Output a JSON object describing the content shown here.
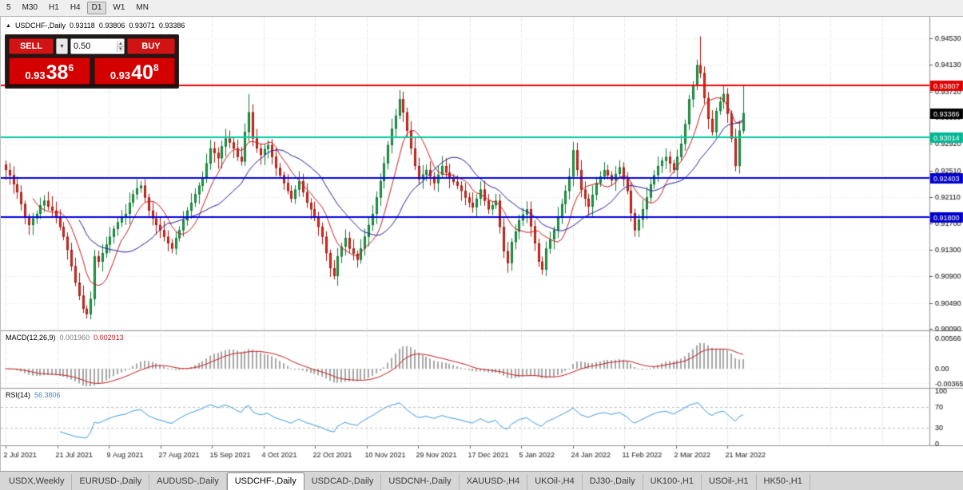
{
  "toolbar": {
    "periods": [
      {
        "label": "5",
        "active": false
      },
      {
        "label": "M30",
        "active": false
      },
      {
        "label": "H1",
        "active": false
      },
      {
        "label": "H4",
        "active": false
      },
      {
        "label": "D1",
        "active": true
      },
      {
        "label": "W1",
        "active": false
      },
      {
        "label": "MN",
        "active": false
      }
    ]
  },
  "icons": {
    "collapse": "▲",
    "dropdown": "▼",
    "spin_up": "▲",
    "spin_down": "▼"
  },
  "symbol_header": {
    "symbol": "USDCHF-,Daily",
    "open": "0.93118",
    "high": "0.93806",
    "low": "0.93071",
    "close": "0.93386"
  },
  "trade_panel": {
    "sell_label": "SELL",
    "buy_label": "BUY",
    "volume": "0.50",
    "sell_price": {
      "base": "0.93",
      "big": "38",
      "sup": "6"
    },
    "buy_price": {
      "base": "0.93",
      "big": "40",
      "sup": "8"
    }
  },
  "chart_data": [
    {
      "type": "candlestick",
      "title": "USDCHF-,Daily",
      "ohlc_display": {
        "open": "0.93118",
        "high": "0.93806",
        "low": "0.93071",
        "close": "0.93386"
      },
      "x_tick_labels": [
        "2 Jul 2021",
        "21 Jul 2021",
        "9 Aug 2021",
        "27 Aug 2021",
        "15 Sep 2021",
        "4 Oct 2021",
        "22 Oct 2021",
        "10 Nov 2021",
        "29 Nov 2021",
        "17 Dec 2021",
        "5 Jan 2022",
        "24 Jan 2022",
        "11 Feb 2022",
        "2 Mar 2022",
        "21 Mar 2022"
      ],
      "y_axis": {
        "min": 0.9007,
        "max": 0.9486,
        "tick_labels": [
          "0.94530",
          "0.94130",
          "0.93720",
          "0.93330",
          "0.92920",
          "0.92510",
          "0.92110",
          "0.91700",
          "0.91300",
          "0.90900",
          "0.90490",
          "0.90090"
        ]
      },
      "first_open": 0.926,
      "closes": [
        0.9252,
        0.9244,
        0.923,
        0.9218,
        0.92,
        0.918,
        0.9168,
        0.9178,
        0.9185,
        0.9198,
        0.9205,
        0.9196,
        0.919,
        0.918,
        0.9165,
        0.915,
        0.913,
        0.9105,
        0.908,
        0.906,
        0.904,
        0.9032,
        0.9055,
        0.912,
        0.9112,
        0.9125,
        0.9138,
        0.915,
        0.9162,
        0.9172,
        0.918,
        0.9185,
        0.9202,
        0.9215,
        0.9224,
        0.9228,
        0.921,
        0.919,
        0.9178,
        0.9168,
        0.916,
        0.915,
        0.914,
        0.9132,
        0.9148,
        0.916,
        0.9175,
        0.919,
        0.9202,
        0.9215,
        0.9228,
        0.924,
        0.9262,
        0.9285,
        0.9278,
        0.927,
        0.9288,
        0.93,
        0.9294,
        0.9285,
        0.9272,
        0.9265,
        0.931,
        0.934,
        0.93,
        0.9285,
        0.9275,
        0.9284,
        0.929,
        0.9272,
        0.9255,
        0.9244,
        0.9232,
        0.922,
        0.9208,
        0.9222,
        0.9235,
        0.9218,
        0.9202,
        0.9192,
        0.918,
        0.9165,
        0.915,
        0.9125,
        0.9102,
        0.909,
        0.912,
        0.9135,
        0.9148,
        0.9132,
        0.9124,
        0.9115,
        0.9132,
        0.915,
        0.9168,
        0.9185,
        0.921,
        0.9235,
        0.9262,
        0.929,
        0.9315,
        0.9335,
        0.936,
        0.934,
        0.9312,
        0.9285,
        0.9258,
        0.9238,
        0.9245,
        0.9252,
        0.9242,
        0.9232,
        0.9245,
        0.9258,
        0.9248,
        0.924,
        0.9234,
        0.9228,
        0.922,
        0.921,
        0.9202,
        0.9195,
        0.9208,
        0.9222,
        0.9205,
        0.9192,
        0.9198,
        0.9205,
        0.9165,
        0.9128,
        0.911,
        0.9142,
        0.9158,
        0.9175,
        0.9184,
        0.9192,
        0.9166,
        0.914,
        0.9112,
        0.91,
        0.9132,
        0.9146,
        0.916,
        0.918,
        0.92,
        0.922,
        0.9242,
        0.9282,
        0.9252,
        0.9222,
        0.9208,
        0.9196,
        0.9214,
        0.9232,
        0.9242,
        0.9252,
        0.9244,
        0.9236,
        0.9246,
        0.9256,
        0.9238,
        0.922,
        0.9186,
        0.916,
        0.9176,
        0.9192,
        0.921,
        0.923,
        0.9244,
        0.9258,
        0.9266,
        0.9272,
        0.9262,
        0.9252,
        0.9272,
        0.9292,
        0.9322,
        0.936,
        0.9382,
        0.9412,
        0.94,
        0.9362,
        0.933,
        0.931,
        0.9342,
        0.9356,
        0.9368,
        0.9338,
        0.93,
        0.9258,
        0.9312,
        0.93386
      ],
      "wick_overrides": {
        "21": {
          "low": 0.9025
        },
        "63": {
          "high": 0.9368
        },
        "85": {
          "low": 0.9085
        },
        "102": {
          "high": 0.9374
        },
        "139": {
          "low": 0.9092
        },
        "147": {
          "high": 0.9295
        },
        "163": {
          "low": 0.915
        },
        "180": {
          "high": 0.9456
        },
        "189": {
          "low": 0.925
        },
        "191": {
          "open": 0.93118,
          "high": 0.93806,
          "low": 0.93071
        }
      },
      "hlines": [
        {
          "value": 0.93807,
          "label": "0.93807",
          "color": "#f20000",
          "box": "#e00000",
          "width": 2
        },
        {
          "value": 0.93014,
          "label": "0.93014",
          "color": "#00c9a0",
          "box": "#00b894",
          "width": 2
        },
        {
          "value": 0.92403,
          "label": "0.92403",
          "color": "#0000e0",
          "box": "#0000cc",
          "width": 2
        },
        {
          "value": 0.918,
          "label": "0.91800",
          "color": "#0000e0",
          "box": "#0000cc",
          "width": 2
        }
      ],
      "current_price": {
        "value": 0.93386,
        "label": "0.93386",
        "box": "#000000"
      },
      "moving_averages": [
        {
          "period": 8,
          "color": "#c81e1e"
        },
        {
          "period": 20,
          "color": "#1f1f9e"
        }
      ],
      "colors": {
        "up_fill": "#25a44c",
        "up_edge": "#117a35",
        "down_fill": "#e03226",
        "down_edge": "#a8180f",
        "grid": "#cdcdcd"
      }
    },
    {
      "type": "macd",
      "label": "MACD(12,26,9)",
      "values_display": [
        "0.001960",
        "0.002913"
      ],
      "params": [
        12,
        26,
        9
      ],
      "y_labels": [
        "0.00566",
        "0.00",
        "-0.00365"
      ],
      "y_range": {
        "max": 0.00566,
        "min": -0.00365
      },
      "histogram_color": "#a6a6a6",
      "signal_color": "#c81e1e"
    },
    {
      "type": "rsi",
      "label": "RSI(14)",
      "value_display": "56.3806",
      "period": 14,
      "levels": [
        70,
        30
      ],
      "y_labels": [
        "100",
        "70",
        "30",
        "0"
      ],
      "line_color": "#3e9adf"
    }
  ],
  "tab_bar": {
    "tabs": [
      {
        "label": "USDX,Weekly",
        "active": false
      },
      {
        "label": "EURUSD-,Daily",
        "active": false
      },
      {
        "label": "AUDUSD-,Daily",
        "active": false
      },
      {
        "label": "USDCHF-,Daily",
        "active": true
      },
      {
        "label": "USDCAD-,Daily",
        "active": false
      },
      {
        "label": "USDCNH-,Daily",
        "active": false
      },
      {
        "label": "XAUUSD-,H4",
        "active": false
      },
      {
        "label": "UKOil-,H4",
        "active": false
      },
      {
        "label": "DJ30-,Daily",
        "active": false
      },
      {
        "label": "UK100-,H1",
        "active": false
      },
      {
        "label": "USOil-,H1",
        "active": false
      },
      {
        "label": "HK50-,H1",
        "active": false
      }
    ]
  }
}
